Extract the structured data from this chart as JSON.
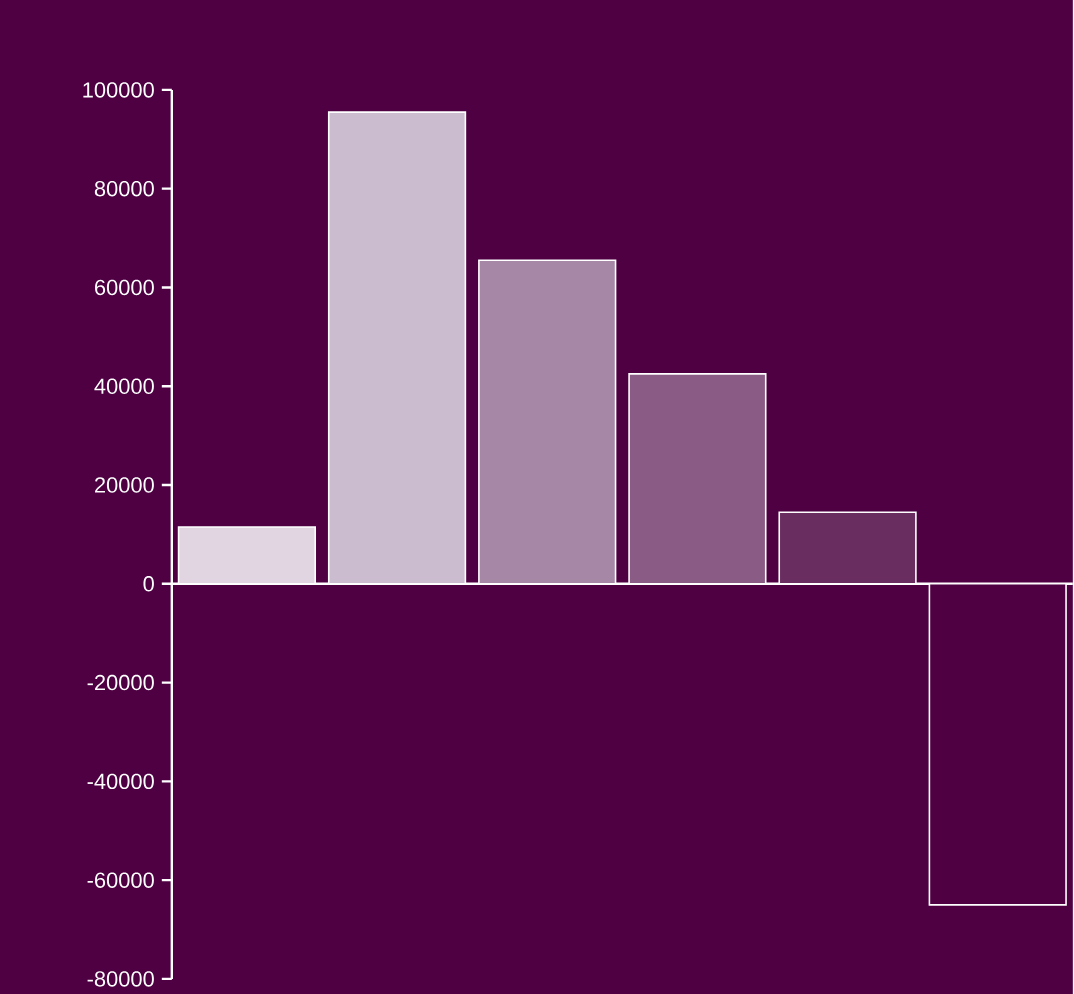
{
  "chart_data": {
    "type": "bar",
    "categories": [
      null,
      null,
      null,
      null,
      null,
      null
    ],
    "values": [
      11500,
      95500,
      65500,
      42500,
      14500,
      -65000
    ],
    "colors": [
      "#e0d5e1",
      "#cbbcd0",
      "#a688a6",
      "#8a5c85",
      "#6a2d60",
      "#4e0042"
    ],
    "ylim": [
      -80000,
      100000
    ],
    "yticks": [
      -80000,
      -60000,
      -40000,
      -20000,
      0,
      20000,
      40000,
      60000,
      80000,
      100000
    ],
    "tick_labels": "y"
  }
}
